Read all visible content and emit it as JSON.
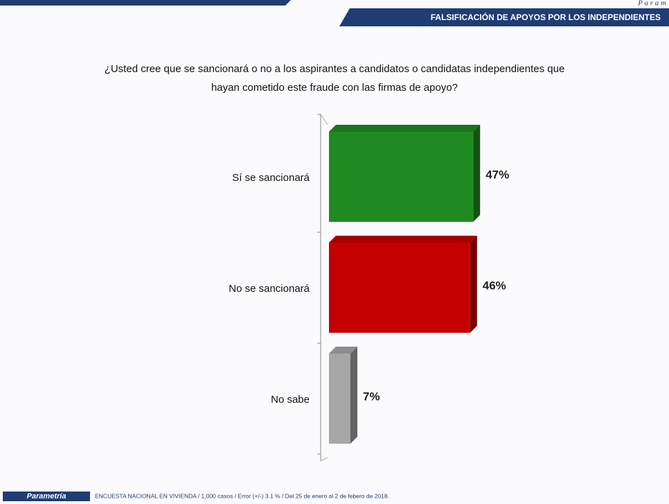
{
  "header": {
    "brand": "P a r a m",
    "section": "FALSIFICACIÓN  DE APOYOS POR LOS INDEPENDIENTES"
  },
  "chart_data": {
    "type": "bar",
    "orientation": "horizontal",
    "title": [
      "¿Usted cree que se sancionará o no a los aspirantes a candidatos o candidatas independientes que",
      "hayan cometido este fraude con las firmas de apoyo?"
    ],
    "categories": [
      "Sí se sancionará",
      "No se sancionará",
      "No sabe"
    ],
    "values": [
      47,
      46,
      7
    ],
    "value_labels": [
      "47%",
      "46%",
      "7%"
    ],
    "colors": [
      "#1f8a1f",
      "#c40000",
      "#a6a6a6"
    ]
  },
  "footer": {
    "logo": "Parametría",
    "note": "ENCUESTA  NACIONAL EN VIVIENDA  / 1,000 casos / Error (+/-) 3.1 % / Del 25 de enero al 2 de febero de 2018."
  }
}
